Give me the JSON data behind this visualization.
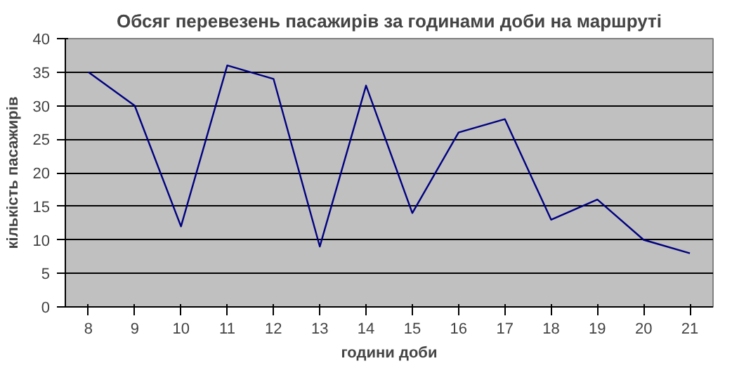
{
  "chart_data": {
    "type": "line",
    "title": "Обсяг перевезень пасажирів за годинами доби на маршруті",
    "xlabel": "години доби",
    "ylabel": "кількість пасажирів",
    "categories": [
      "8",
      "9",
      "10",
      "11",
      "12",
      "13",
      "14",
      "15",
      "16",
      "17",
      "18",
      "19",
      "20",
      "21"
    ],
    "series": [
      {
        "color": "#000080",
        "values": [
          35,
          30,
          12,
          36,
          34,
          9,
          33,
          14,
          26,
          28,
          13,
          16,
          10,
          8
        ]
      }
    ],
    "ylim": [
      0,
      40
    ],
    "yticks": [
      0,
      5,
      10,
      15,
      20,
      25,
      30,
      35,
      40
    ],
    "grid": "y",
    "marker": "none",
    "line_style": "solid"
  }
}
